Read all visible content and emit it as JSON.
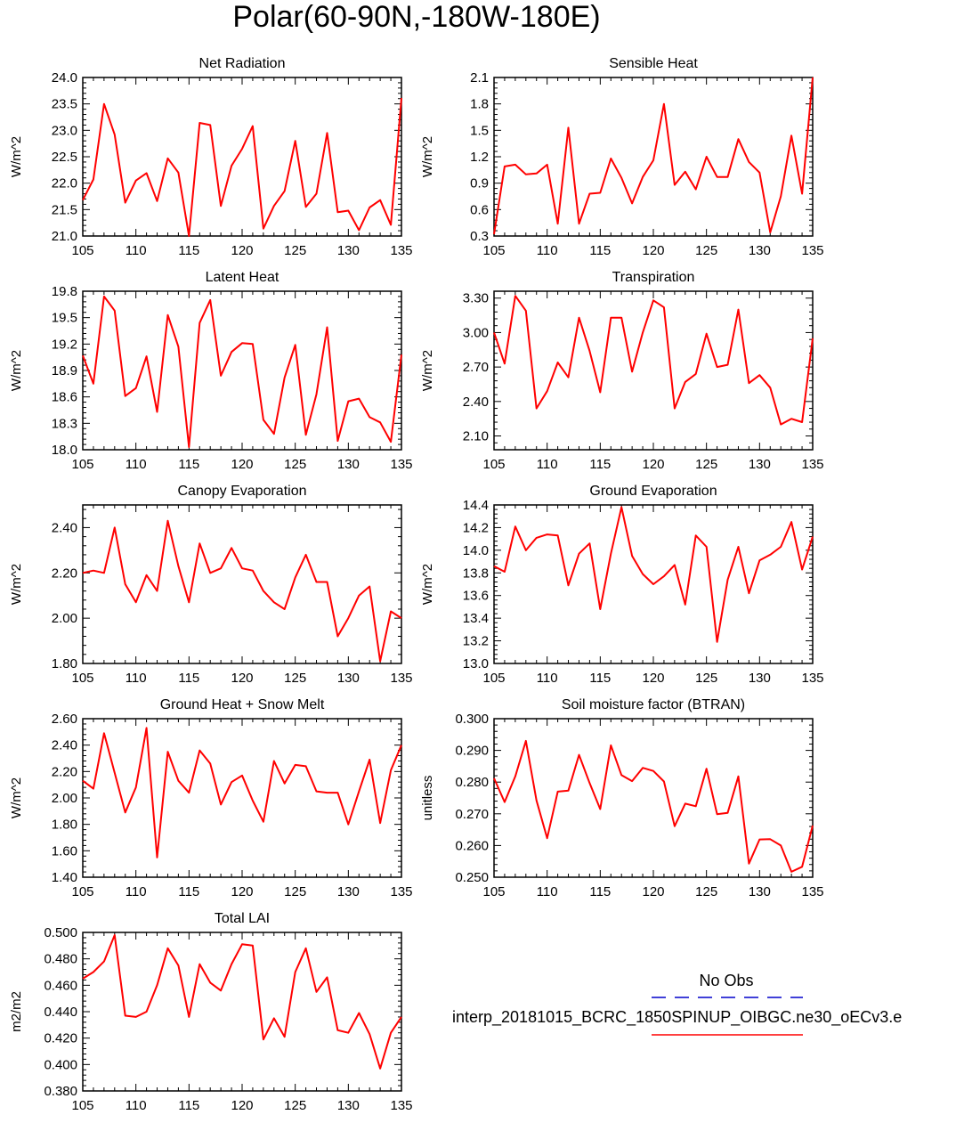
{
  "title": "Polar(60-90N,-180W-180E)",
  "legend": {
    "obs_label": "No Obs",
    "obs_color": "#0000cc",
    "model_label": "interp_20181015_BCRC_1850SPINUP_OIBGC.ne30_oECv3.e",
    "model_color": "#ff0000"
  },
  "chart_data": [
    {
      "type": "line",
      "title": "Net Radiation",
      "ylabel": "W/m^2",
      "xlim": [
        105,
        135
      ],
      "ylim": [
        21.0,
        24.0
      ],
      "xticks": [
        "105",
        "110",
        "115",
        "120",
        "125",
        "130",
        "135"
      ],
      "yticks": [
        "21.0",
        "21.5",
        "22.0",
        "22.5",
        "23.0",
        "23.5",
        "24.0"
      ],
      "x": [
        105,
        106,
        107,
        108,
        109,
        110,
        111,
        112,
        113,
        114,
        115,
        116,
        117,
        118,
        119,
        120,
        121,
        122,
        123,
        124,
        125,
        126,
        127,
        128,
        129,
        130,
        131,
        132,
        133,
        134,
        135
      ],
      "y": [
        21.68,
        22.07,
        23.5,
        22.92,
        21.63,
        22.05,
        22.19,
        21.66,
        22.47,
        22.2,
        21.0,
        23.14,
        23.1,
        21.57,
        22.33,
        22.65,
        23.08,
        21.14,
        21.57,
        21.85,
        22.8,
        21.55,
        21.8,
        22.95,
        21.45,
        21.48,
        21.11,
        21.54,
        21.68,
        21.21,
        23.61
      ]
    },
    {
      "type": "line",
      "title": "Sensible Heat",
      "ylabel": "W/m^2",
      "xlim": [
        105,
        135
      ],
      "ylim": [
        0.3,
        2.1
      ],
      "xticks": [
        "105",
        "110",
        "115",
        "120",
        "125",
        "130",
        "135"
      ],
      "yticks": [
        "0.3",
        "0.6",
        "0.9",
        "1.2",
        "1.5",
        "1.8",
        "2.1"
      ],
      "x": [
        105,
        106,
        107,
        108,
        109,
        110,
        111,
        112,
        113,
        114,
        115,
        116,
        117,
        118,
        119,
        120,
        121,
        122,
        123,
        124,
        125,
        126,
        127,
        128,
        129,
        130,
        131,
        132,
        133,
        134,
        135
      ],
      "y": [
        0.32,
        1.09,
        1.11,
        1.0,
        1.01,
        1.11,
        0.44,
        1.53,
        0.44,
        0.78,
        0.79,
        1.18,
        0.96,
        0.67,
        0.97,
        1.16,
        1.8,
        0.88,
        1.03,
        0.83,
        1.2,
        0.97,
        0.97,
        1.4,
        1.14,
        1.02,
        0.34,
        0.75,
        1.44,
        0.78,
        2.1
      ]
    },
    {
      "type": "line",
      "title": "Latent Heat",
      "ylabel": "W/m^2",
      "xlim": [
        105,
        135
      ],
      "ylim": [
        18.0,
        19.8
      ],
      "xticks": [
        "105",
        "110",
        "115",
        "120",
        "125",
        "130",
        "135"
      ],
      "yticks": [
        "18.0",
        "18.3",
        "18.6",
        "18.9",
        "19.2",
        "19.5",
        "19.8"
      ],
      "x": [
        105,
        106,
        107,
        108,
        109,
        110,
        111,
        112,
        113,
        114,
        115,
        116,
        117,
        118,
        119,
        120,
        121,
        122,
        123,
        124,
        125,
        126,
        127,
        128,
        129,
        130,
        131,
        132,
        133,
        134,
        135
      ],
      "y": [
        19.07,
        18.75,
        19.74,
        19.58,
        18.61,
        18.7,
        19.06,
        18.43,
        19.53,
        19.17,
        18.03,
        19.44,
        19.7,
        18.84,
        19.11,
        19.21,
        19.2,
        18.34,
        18.18,
        18.82,
        19.19,
        18.17,
        18.63,
        19.39,
        18.1,
        18.55,
        18.58,
        18.37,
        18.31,
        18.09,
        19.08
      ]
    },
    {
      "type": "line",
      "title": "Transpiration",
      "ylabel": "W/m^2",
      "xlim": [
        105,
        135
      ],
      "ylim": [
        1.98,
        3.36
      ],
      "xticks": [
        "105",
        "110",
        "115",
        "120",
        "125",
        "130",
        "135"
      ],
      "yticks": [
        "2.10",
        "2.40",
        "2.70",
        "3.00",
        "3.30"
      ],
      "ytick_values": [
        2.1,
        2.4,
        2.7,
        3.0,
        3.3
      ],
      "x": [
        105,
        106,
        107,
        108,
        109,
        110,
        111,
        112,
        113,
        114,
        115,
        116,
        117,
        118,
        119,
        120,
        121,
        122,
        123,
        124,
        125,
        126,
        127,
        128,
        129,
        130,
        131,
        132,
        133,
        134,
        135
      ],
      "y": [
        3.0,
        2.73,
        3.32,
        3.19,
        2.34,
        2.49,
        2.74,
        2.61,
        3.13,
        2.84,
        2.48,
        3.13,
        3.13,
        2.66,
        3.0,
        3.28,
        3.22,
        2.34,
        2.57,
        2.64,
        2.99,
        2.7,
        2.72,
        3.2,
        2.56,
        2.63,
        2.52,
        2.2,
        2.25,
        2.22,
        2.95
      ]
    },
    {
      "type": "line",
      "title": "Canopy Evaporation",
      "ylabel": "W/m^2",
      "xlim": [
        105,
        135
      ],
      "ylim": [
        1.8,
        2.5
      ],
      "xticks": [
        "105",
        "110",
        "115",
        "120",
        "125",
        "130",
        "135"
      ],
      "yticks": [
        "1.80",
        "2.00",
        "2.20",
        "2.40"
      ],
      "ytick_values": [
        1.8,
        2.0,
        2.2,
        2.4
      ],
      "x": [
        105,
        106,
        107,
        108,
        109,
        110,
        111,
        112,
        113,
        114,
        115,
        116,
        117,
        118,
        119,
        120,
        121,
        122,
        123,
        124,
        125,
        126,
        127,
        128,
        129,
        130,
        131,
        132,
        133,
        134,
        135
      ],
      "y": [
        2.2,
        2.21,
        2.2,
        2.4,
        2.15,
        2.07,
        2.19,
        2.12,
        2.43,
        2.23,
        2.07,
        2.33,
        2.2,
        2.22,
        2.31,
        2.22,
        2.21,
        2.12,
        2.07,
        2.04,
        2.18,
        2.28,
        2.16,
        2.16,
        1.92,
        2.0,
        2.1,
        2.14,
        1.81,
        2.03,
        2.0
      ]
    },
    {
      "type": "line",
      "title": "Ground Evaporation",
      "ylabel": "W/m^2",
      "xlim": [
        105,
        135
      ],
      "ylim": [
        13.0,
        14.4
      ],
      "xticks": [
        "105",
        "110",
        "115",
        "120",
        "125",
        "130",
        "135"
      ],
      "yticks": [
        "13.0",
        "13.2",
        "13.4",
        "13.6",
        "13.8",
        "14.0",
        "14.2",
        "14.4"
      ],
      "x": [
        105,
        106,
        107,
        108,
        109,
        110,
        111,
        112,
        113,
        114,
        115,
        116,
        117,
        118,
        119,
        120,
        121,
        122,
        123,
        124,
        125,
        126,
        127,
        128,
        129,
        130,
        131,
        132,
        133,
        134,
        135
      ],
      "y": [
        13.86,
        13.81,
        14.21,
        14.0,
        14.11,
        14.14,
        14.13,
        13.69,
        13.97,
        14.06,
        13.48,
        13.97,
        14.38,
        13.95,
        13.79,
        13.7,
        13.77,
        13.87,
        13.52,
        14.13,
        14.03,
        13.19,
        13.74,
        14.03,
        13.62,
        13.91,
        13.96,
        14.03,
        14.25,
        13.83,
        14.12
      ]
    },
    {
      "type": "line",
      "title": "Ground Heat + Snow Melt",
      "ylabel": "W/m^2",
      "xlim": [
        105,
        135
      ],
      "ylim": [
        1.4,
        2.6
      ],
      "xticks": [
        "105",
        "110",
        "115",
        "120",
        "125",
        "130",
        "135"
      ],
      "yticks": [
        "1.40",
        "1.60",
        "1.80",
        "2.00",
        "2.20",
        "2.40",
        "2.60"
      ],
      "x": [
        105,
        106,
        107,
        108,
        109,
        110,
        111,
        112,
        113,
        114,
        115,
        116,
        117,
        118,
        119,
        120,
        121,
        122,
        123,
        124,
        125,
        126,
        127,
        128,
        129,
        130,
        131,
        132,
        133,
        134,
        135
      ],
      "y": [
        2.13,
        2.07,
        2.49,
        2.19,
        1.89,
        2.08,
        2.53,
        1.55,
        2.35,
        2.13,
        2.04,
        2.36,
        2.26,
        1.95,
        2.12,
        2.17,
        1.98,
        1.82,
        2.28,
        2.11,
        2.25,
        2.24,
        2.05,
        2.04,
        2.04,
        1.8,
        2.05,
        2.29,
        1.81,
        2.21,
        2.4
      ]
    },
    {
      "type": "line",
      "title": "Soil moisture factor (BTRAN)",
      "ylabel": "unitless",
      "xlim": [
        105,
        135
      ],
      "ylim": [
        0.25,
        0.3
      ],
      "xticks": [
        "105",
        "110",
        "115",
        "120",
        "125",
        "130",
        "135"
      ],
      "yticks": [
        "0.250",
        "0.260",
        "0.270",
        "0.280",
        "0.290",
        "0.300"
      ],
      "x": [
        105,
        106,
        107,
        108,
        109,
        110,
        111,
        112,
        113,
        114,
        115,
        116,
        117,
        118,
        119,
        120,
        121,
        122,
        123,
        124,
        125,
        126,
        127,
        128,
        129,
        130,
        131,
        132,
        133,
        134,
        135
      ],
      "y": [
        0.2812,
        0.2737,
        0.2818,
        0.293,
        0.2742,
        0.2623,
        0.277,
        0.2773,
        0.2886,
        0.2797,
        0.2715,
        0.2916,
        0.2822,
        0.2803,
        0.2845,
        0.2835,
        0.2802,
        0.2661,
        0.2732,
        0.2724,
        0.2842,
        0.2699,
        0.2703,
        0.2818,
        0.2543,
        0.2619,
        0.262,
        0.26,
        0.2517,
        0.2533,
        0.2663
      ]
    },
    {
      "type": "line",
      "title": "Total LAI",
      "ylabel": "m2/m2",
      "xlim": [
        105,
        135
      ],
      "ylim": [
        0.38,
        0.5
      ],
      "xticks": [
        "105",
        "110",
        "115",
        "120",
        "125",
        "130",
        "135"
      ],
      "yticks": [
        "0.380",
        "0.400",
        "0.420",
        "0.440",
        "0.460",
        "0.480",
        "0.500"
      ],
      "x": [
        105,
        106,
        107,
        108,
        109,
        110,
        111,
        112,
        113,
        114,
        115,
        116,
        117,
        118,
        119,
        120,
        121,
        122,
        123,
        124,
        125,
        126,
        127,
        128,
        129,
        130,
        131,
        132,
        133,
        134,
        135
      ],
      "y": [
        0.465,
        0.47,
        0.478,
        0.498,
        0.437,
        0.436,
        0.44,
        0.46,
        0.488,
        0.475,
        0.436,
        0.476,
        0.462,
        0.456,
        0.476,
        0.491,
        0.49,
        0.419,
        0.435,
        0.421,
        0.47,
        0.488,
        0.455,
        0.466,
        0.426,
        0.424,
        0.439,
        0.423,
        0.397,
        0.424,
        0.436
      ]
    }
  ]
}
